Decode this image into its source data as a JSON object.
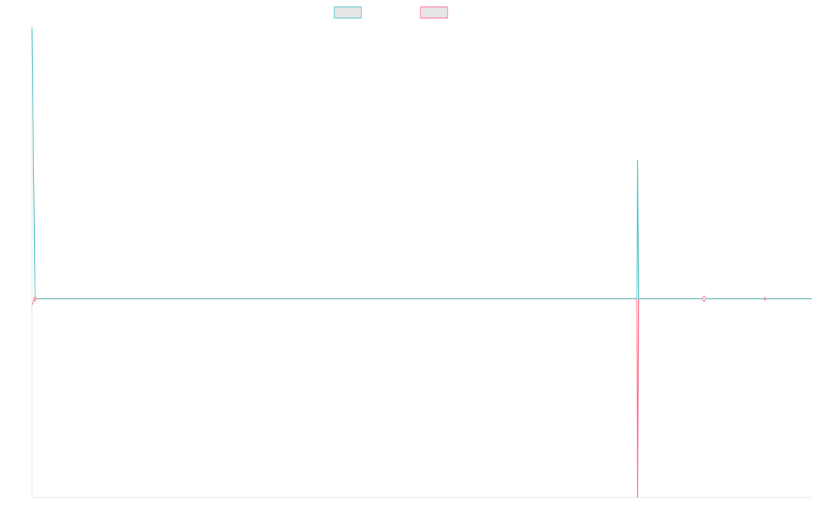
{
  "chart_data": {
    "type": "line",
    "title": "",
    "xlabel": "",
    "ylabel": "",
    "x_points": 1000,
    "ylim": [
      -1,
      1.4
    ],
    "grid": false,
    "legend": {
      "placement": "top-center",
      "entries": [
        {
          "name": "",
          "color": "#4bc0c0"
        },
        {
          "name": "",
          "color": "#ff6384"
        }
      ]
    },
    "series": [
      {
        "name": "",
        "color": "#4bc0c0",
        "points": [
          {
            "x": 0,
            "y": 1.38
          },
          {
            "x": 4,
            "y": 0.0
          },
          {
            "x": 775,
            "y": 0.0
          },
          {
            "x": 776,
            "y": 0.71
          },
          {
            "x": 777,
            "y": 0.0
          },
          {
            "x": 999,
            "y": 0.0
          }
        ],
        "markers": [
          {
            "x": 4,
            "y": 0.0
          },
          {
            "x": 861,
            "y": 0.0
          },
          {
            "x": 939,
            "y": 0.0
          }
        ]
      },
      {
        "name": "",
        "color": "#ff6384",
        "points": [
          {
            "x": 0,
            "y": -0.03
          },
          {
            "x": 4,
            "y": 0.0
          },
          {
            "x": 775,
            "y": 0.0
          },
          {
            "x": 776,
            "y": -1.0
          },
          {
            "x": 777,
            "y": 0.0
          },
          {
            "x": 999,
            "y": 0.0
          }
        ],
        "markers": [
          {
            "x": 4,
            "y": 0.0
          },
          {
            "x": 861,
            "y": 0.0
          },
          {
            "x": 939,
            "y": 0.0
          }
        ]
      }
    ]
  }
}
